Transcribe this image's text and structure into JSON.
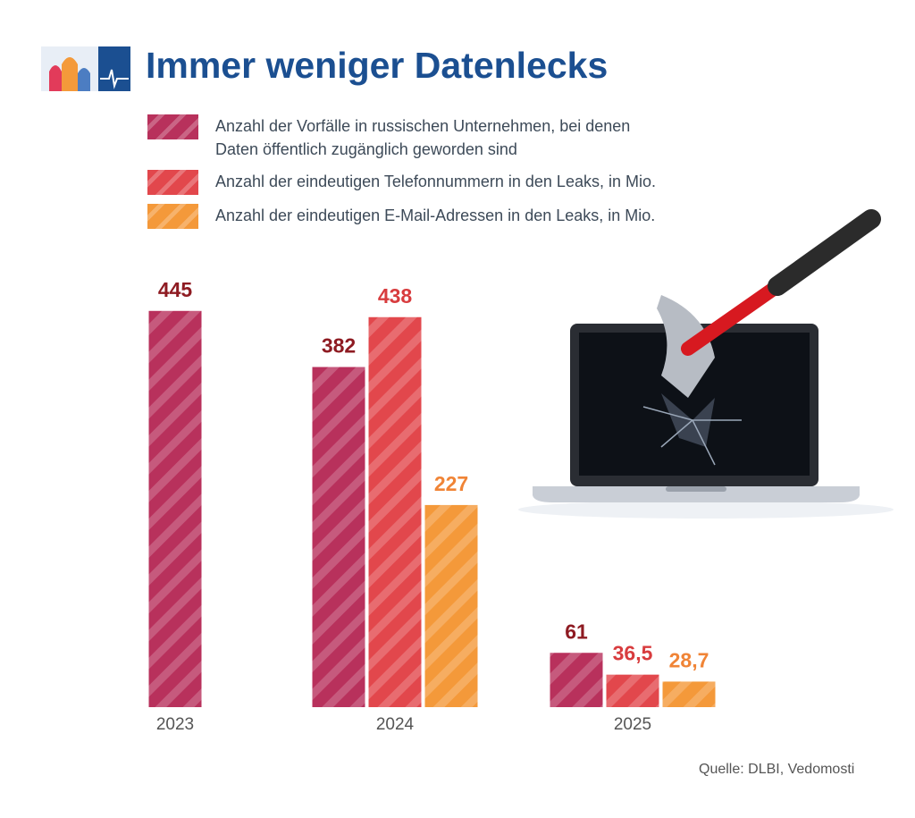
{
  "chart_data": {
    "type": "bar",
    "title": "Immer weniger Datenlecks",
    "categories": [
      "2023",
      "2024",
      "2025"
    ],
    "series": [
      {
        "name": "Anzahl der Vorfälle in russischen Unternehmen, bei denen Daten öffentlich zugänglich geworden sind",
        "color": "#b8315c",
        "label_color": "#8e1b22",
        "values": [
          445,
          382,
          61
        ]
      },
      {
        "name": "Anzahl der eindeutigen Telefonnummern in den Leaks, in Mio.",
        "color": "#e2474c",
        "label_color": "#d83c3e",
        "values": [
          null,
          438,
          36.5
        ],
        "value_labels": [
          null,
          "438",
          "36,5"
        ]
      },
      {
        "name": "Anzahl der eindeutigen E-Mail-Adressen in den Leaks, in Mio.",
        "color": "#f4993a",
        "label_color": "#f08436",
        "values": [
          null,
          227,
          28.7
        ],
        "value_labels": [
          null,
          "227",
          "28,7"
        ]
      }
    ],
    "source": "Quelle: DLBI, Vedomosti"
  }
}
